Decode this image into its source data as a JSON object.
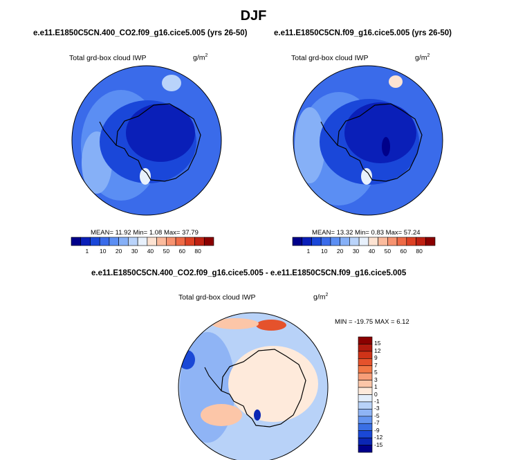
{
  "page_title": "DJF",
  "chart_data": [
    {
      "type": "heatmap",
      "projection": "south-polar-stereographic",
      "title": "e.e11.E1850C5CN.400_CO2.f09_g16.cice5.005 (yrs 26-50)",
      "variable": "Total grd-box cloud IWP",
      "units_base": "g/m",
      "units_exp": "2",
      "stats_text": "MEAN=  11.92  Min=   1.08  Max=  37.79",
      "stats": {
        "mean": 11.92,
        "min": 1.08,
        "max": 37.79
      },
      "colorbar": {
        "orientation": "horizontal",
        "levels": [
          1,
          10,
          20,
          30,
          40,
          50,
          60,
          80
        ],
        "level_labels": [
          "1",
          "10",
          "20",
          "30",
          "40",
          "50",
          "60",
          "80"
        ],
        "colors": [
          "#00008a",
          "#0a1fb8",
          "#1a47d9",
          "#3a6bea",
          "#5b8ef3",
          "#86b0f7",
          "#b9d3fa",
          "#e8f1fc",
          "#fde3d2",
          "#fbbb9d",
          "#f79370",
          "#ee6a46",
          "#dd4124",
          "#bf2112",
          "#8a0000"
        ]
      }
    },
    {
      "type": "heatmap",
      "projection": "south-polar-stereographic",
      "title": "e.e11.E1850C5CN.f09_g16.cice5.005 (yrs 26-50)",
      "variable": "Total grd-box cloud IWP",
      "units_base": "g/m",
      "units_exp": "2",
      "stats_text": "MEAN=  13.32  Min=   0.83  Max=  57.24",
      "stats": {
        "mean": 13.32,
        "min": 0.83,
        "max": 57.24
      },
      "colorbar": {
        "orientation": "horizontal",
        "levels": [
          1,
          10,
          20,
          30,
          40,
          50,
          60,
          80
        ],
        "level_labels": [
          "1",
          "10",
          "20",
          "30",
          "40",
          "50",
          "60",
          "80"
        ],
        "colors": [
          "#00008a",
          "#0a1fb8",
          "#1a47d9",
          "#3a6bea",
          "#5b8ef3",
          "#86b0f7",
          "#b9d3fa",
          "#e8f1fc",
          "#fde3d2",
          "#fbbb9d",
          "#f79370",
          "#ee6a46",
          "#dd4124",
          "#bf2112",
          "#8a0000"
        ]
      }
    },
    {
      "type": "heatmap",
      "projection": "south-polar-stereographic",
      "title": "e.e11.E1850C5CN.400_CO2.f09_g16.cice5.005 - e.e11.E1850C5CN.f09_g16.cice5.005",
      "variable": "Total grd-box cloud IWP",
      "units_base": "g/m",
      "units_exp": "2",
      "stats_text": "MIN = -19.75 MAX =   6.12",
      "stats": {
        "min": -19.75,
        "max": 6.12
      },
      "colorbar": {
        "orientation": "vertical",
        "levels": [
          15,
          12,
          9,
          7,
          5,
          3,
          1,
          0,
          -1,
          -3,
          -5,
          -7,
          -9,
          -12,
          -15
        ],
        "level_labels": [
          "15",
          "12",
          "9",
          "7",
          "5",
          "3",
          "1",
          "0",
          "-1",
          "-3",
          "-5",
          "-7",
          "-9",
          "-12",
          "-15"
        ],
        "colors": [
          "#8a0000",
          "#b01a0e",
          "#cf3318",
          "#e5522c",
          "#f27846",
          "#f79e78",
          "#fcc6a8",
          "#feeadb",
          "#e3eefb",
          "#b8d2f8",
          "#8fb4f5",
          "#6494f0",
          "#3a6fe5",
          "#1a48d6",
          "#0b26b4",
          "#00008a"
        ]
      }
    }
  ]
}
